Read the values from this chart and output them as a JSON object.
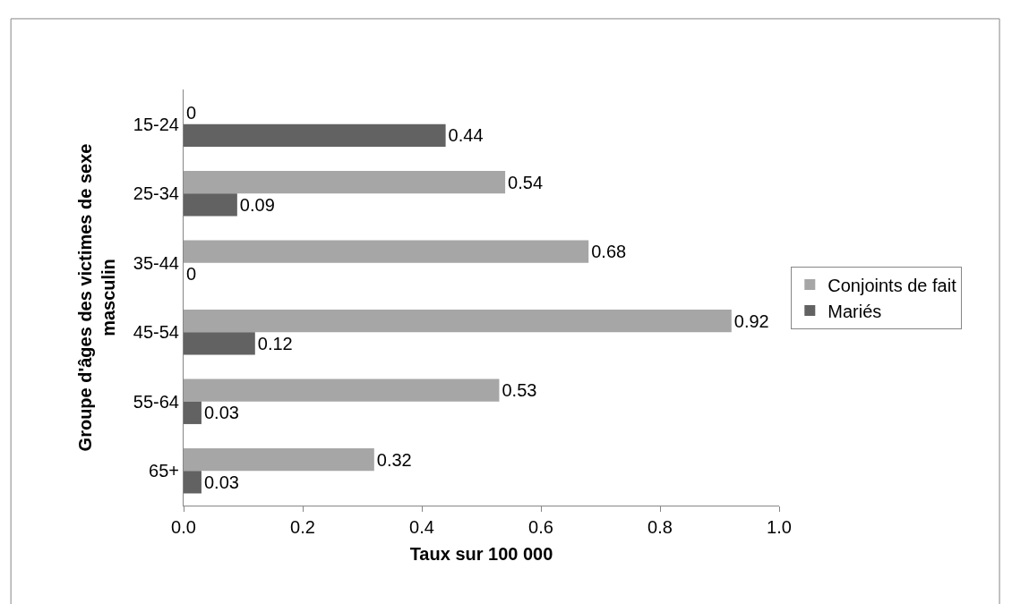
{
  "chart_data": {
    "type": "bar",
    "orientation": "horizontal",
    "xlabel": "Taux sur 100 000",
    "ylabel": "Groupe d'âges des victimes de sexe masculin",
    "categories": [
      "15-24",
      "25-34",
      "35-44",
      "45-54",
      "55-64",
      "65+"
    ],
    "series": [
      {
        "name": "Conjoints de fait",
        "color": "#a6a6a6",
        "values": [
          0,
          0.54,
          0.68,
          0.92,
          0.53,
          0.32
        ]
      },
      {
        "name": "Mariés",
        "color": "#626262",
        "values": [
          0.44,
          0.09,
          0,
          0.12,
          0.03,
          0.03
        ]
      }
    ],
    "xlim": [
      0,
      1
    ],
    "xticks": [
      {
        "value": 0,
        "label": "0.0"
      },
      {
        "value": 0.2,
        "label": "0.2"
      },
      {
        "value": 0.4,
        "label": "0.4"
      },
      {
        "value": 0.6,
        "label": "0.6"
      },
      {
        "value": 0.8,
        "label": "0.8"
      },
      {
        "value": 1,
        "label": "1.0"
      }
    ],
    "data_labels": true,
    "grid": false,
    "legend": "right"
  }
}
